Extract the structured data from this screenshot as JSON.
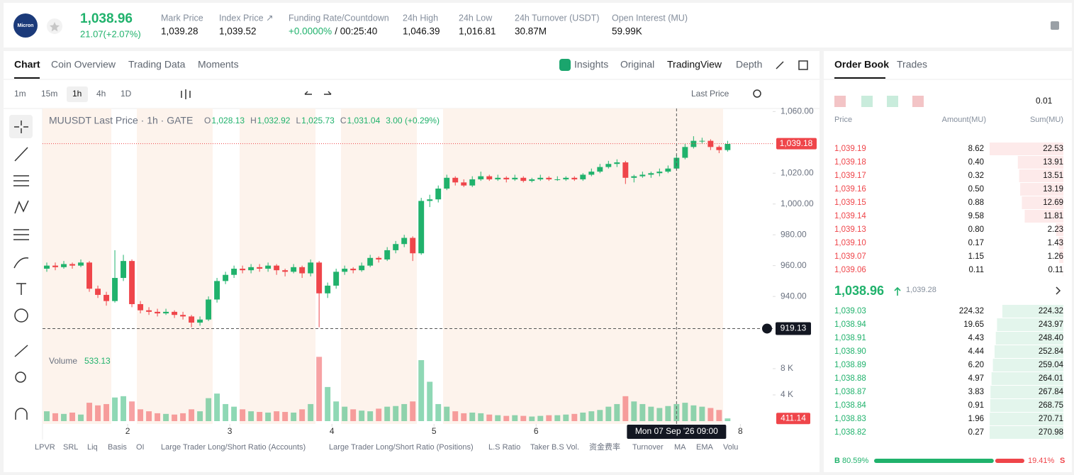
{
  "header": {
    "logo": "Micron",
    "price": "1,038.96",
    "change": "21.07(+2.07%)",
    "stats": [
      {
        "label": "Mark Price",
        "value": "1,039.28"
      },
      {
        "label": "Index Price ↗",
        "value": "1,039.52"
      },
      {
        "label": "Funding Rate/Countdown",
        "value": "+0.0000%",
        "extra": "/ 00:25:40"
      },
      {
        "label": "24h High",
        "value": "1,046.39"
      },
      {
        "label": "24h Low",
        "value": "1,016.81"
      },
      {
        "label": "24h Turnover (USDT)",
        "value": "30.87M"
      },
      {
        "label": "Open Interest (MU)",
        "value": "59.99K"
      }
    ]
  },
  "tabs": [
    "Chart",
    "Coin Overview",
    "Trading Data",
    "Moments"
  ],
  "views": [
    "Insights",
    "Original",
    "TradingView",
    "Depth"
  ],
  "intervals": [
    "1m",
    "15m",
    "1h",
    "4h",
    "1D"
  ],
  "price_source": "Last Price",
  "indicators": [
    "LPVR",
    "SRL",
    "Liq",
    "Basis",
    "OI",
    "Large Trader Long/Short Ratio (Accounts)",
    "Large Trader Long/Short Ratio (Positions)",
    "L.S Ratio",
    "Taker B.S Vol.",
    "资金费率",
    "Turnover",
    "MA",
    "EMA",
    "Volu"
  ],
  "chart_data": {
    "type": "candlestick",
    "legend": {
      "name": "MUUSDT Last Price · 1h · GATE",
      "fields": [
        {
          "key": "O",
          "value": "1,028.13"
        },
        {
          "key": "H",
          "value": "1,032.92"
        },
        {
          "key": "L",
          "value": "1,025.73"
        },
        {
          "key": "C",
          "value": "1,031.04"
        }
      ],
      "change": "3.00 (+0.29%)"
    },
    "up_color": "#20b26c",
    "down_color": "#ef454a",
    "ohlc": [
      [
        958,
        962,
        956,
        960
      ],
      [
        960,
        962,
        957,
        959
      ],
      [
        959,
        963,
        958,
        961
      ],
      [
        961,
        962,
        958,
        960
      ],
      [
        960,
        964,
        959,
        962
      ],
      [
        962,
        963,
        943,
        945
      ],
      [
        945,
        947,
        939,
        941
      ],
      [
        941,
        943,
        934,
        937
      ],
      [
        937,
        970,
        936,
        952
      ],
      [
        952,
        967,
        950,
        963
      ],
      [
        963,
        964,
        933,
        935
      ],
      [
        935,
        937,
        929,
        931
      ],
      [
        931,
        933,
        928,
        930
      ],
      [
        930,
        932,
        927,
        929
      ],
      [
        929,
        932,
        928,
        930
      ],
      [
        930,
        931,
        926,
        928
      ],
      [
        928,
        930,
        925,
        927
      ],
      [
        927,
        928,
        920,
        923
      ],
      [
        923,
        927,
        921,
        925
      ],
      [
        925,
        940,
        924,
        938
      ],
      [
        938,
        952,
        936,
        950
      ],
      [
        950,
        956,
        948,
        954
      ],
      [
        954,
        960,
        952,
        958
      ],
      [
        958,
        960,
        955,
        957
      ],
      [
        957,
        961,
        955,
        959
      ],
      [
        959,
        961,
        956,
        958
      ],
      [
        958,
        962,
        956,
        960
      ],
      [
        960,
        961,
        954,
        957
      ],
      [
        957,
        958,
        953,
        956
      ],
      [
        956,
        961,
        955,
        959
      ],
      [
        959,
        960,
        952,
        955
      ],
      [
        955,
        964,
        953,
        962
      ],
      [
        962,
        963,
        920,
        942
      ],
      [
        942,
        949,
        939,
        947
      ],
      [
        947,
        958,
        945,
        956
      ],
      [
        956,
        960,
        954,
        958
      ],
      [
        958,
        959,
        955,
        957
      ],
      [
        957,
        962,
        956,
        960
      ],
      [
        960,
        967,
        959,
        965
      ],
      [
        965,
        966,
        962,
        964
      ],
      [
        964,
        972,
        963,
        970
      ],
      [
        970,
        976,
        968,
        974
      ],
      [
        974,
        980,
        972,
        978
      ],
      [
        978,
        979,
        963,
        968
      ],
      [
        968,
        1004,
        967,
        1002
      ],
      [
        1002,
        1006,
        998,
        1003
      ],
      [
        1003,
        1012,
        1001,
        1010
      ],
      [
        1010,
        1019,
        1009,
        1017
      ],
      [
        1017,
        1018,
        1012,
        1014
      ],
      [
        1014,
        1016,
        1011,
        1012
      ],
      [
        1012,
        1018,
        1011,
        1016
      ],
      [
        1016,
        1021,
        1015,
        1018
      ],
      [
        1018,
        1019,
        1015,
        1016
      ],
      [
        1016,
        1019,
        1015,
        1017
      ],
      [
        1017,
        1018,
        1014,
        1016
      ],
      [
        1016,
        1019,
        1015,
        1017
      ],
      [
        1017,
        1018,
        1014,
        1015
      ],
      [
        1015,
        1017,
        1014,
        1016
      ],
      [
        1016,
        1019,
        1015,
        1017
      ],
      [
        1017,
        1018,
        1015,
        1016
      ],
      [
        1016,
        1018,
        1015,
        1016
      ],
      [
        1016,
        1018,
        1015,
        1017
      ],
      [
        1017,
        1018,
        1015,
        1016
      ],
      [
        1016,
        1020,
        1015,
        1019
      ],
      [
        1019,
        1023,
        1018,
        1021
      ],
      [
        1021,
        1026,
        1020,
        1024
      ],
      [
        1024,
        1028,
        1023,
        1026
      ],
      [
        1026,
        1029,
        1024,
        1027
      ],
      [
        1027,
        1028,
        1013,
        1017
      ],
      [
        1017,
        1019,
        1014,
        1018
      ],
      [
        1018,
        1021,
        1017,
        1019
      ],
      [
        1019,
        1021,
        1017,
        1020
      ],
      [
        1020,
        1023,
        1018,
        1021
      ],
      [
        1021,
        1025,
        1020,
        1023
      ],
      [
        1023,
        1032,
        1022,
        1030
      ],
      [
        1030,
        1039,
        1029,
        1037
      ],
      [
        1037,
        1044,
        1036,
        1041
      ],
      [
        1041,
        1043,
        1039,
        1041
      ],
      [
        1041,
        1042,
        1035,
        1037
      ],
      [
        1037,
        1038,
        1033,
        1035
      ],
      [
        1035,
        1041,
        1034,
        1039
      ]
    ],
    "volume_name": "Volume",
    "volume_value": "533.13",
    "volumes": [
      1500,
      1200,
      1100,
      1300,
      1000,
      2800,
      2400,
      2600,
      3600,
      3800,
      3000,
      1800,
      1500,
      1200,
      1100,
      1000,
      1200,
      1800,
      1500,
      3500,
      4200,
      2600,
      2200,
      1800,
      1500,
      1400,
      1300,
      1500,
      1400,
      1300,
      1800,
      2600,
      9800,
      5200,
      3000,
      2200,
      1800,
      1600,
      1500,
      1900,
      2200,
      2300,
      2600,
      3000,
      9300,
      6000,
      2600,
      2200,
      1500,
      1200,
      1300,
      1200,
      1000,
      900,
      800,
      900,
      800,
      700,
      800,
      900,
      900,
      1000,
      1100,
      1300,
      1500,
      1700,
      2200,
      2600,
      3800,
      3000,
      2600,
      2200,
      2000,
      2300,
      2600,
      2800,
      2400,
      2200,
      2000,
      1700,
      411.14
    ],
    "xlim": [
      -0.5,
      85.3
    ],
    "xticks": [
      {
        "value": 9.5,
        "label": "2"
      },
      {
        "value": 21.5,
        "label": "3"
      },
      {
        "value": 33.5,
        "label": "4"
      },
      {
        "value": 45.5,
        "label": "5"
      },
      {
        "value": 57.5,
        "label": "6"
      },
      {
        "value": 81.5,
        "label": "8"
      }
    ],
    "ylim": [
      906,
      1062
    ],
    "yticks": [
      {
        "value": 940,
        "label": "940.00"
      },
      {
        "value": 960,
        "label": "960.00"
      },
      {
        "value": 980,
        "label": "980.00"
      },
      {
        "value": 1000,
        "label": "1,000.00"
      },
      {
        "value": 1020,
        "label": "1,020.00"
      },
      {
        "value": 1060,
        "label": "1,060.00"
      }
    ],
    "vlim": [
      0,
      10700
    ],
    "vticks": [
      {
        "value": 4000,
        "label": "4 K"
      },
      {
        "value": 8000,
        "label": "8 K"
      }
    ],
    "last_price": {
      "value": 1039.18,
      "label": "1,039.18"
    },
    "crosshair": {
      "x": {
        "value": 74,
        "label": "Mon 07 Sep '26  09:00"
      },
      "y": 919.13
    }
  },
  "order_book": {
    "tabs": [
      "Order Book",
      "Trades"
    ],
    "precision": "0.01",
    "columns": [
      "Price",
      "Amount(MU)",
      "Sum(MU)"
    ],
    "asks": [
      {
        "price": "1,039.19",
        "amount": "8.62",
        "sum": 22.53
      },
      {
        "price": "1,039.18",
        "amount": "0.40",
        "sum": 13.91
      },
      {
        "price": "1,039.17",
        "amount": "0.32",
        "sum": 13.51
      },
      {
        "price": "1,039.16",
        "amount": "0.50",
        "sum": 13.19
      },
      {
        "price": "1,039.15",
        "amount": "0.88",
        "sum": 12.69
      },
      {
        "price": "1,039.14",
        "amount": "9.58",
        "sum": 11.81
      },
      {
        "price": "1,039.13",
        "amount": "0.80",
        "sum": 2.23
      },
      {
        "price": "1,039.10",
        "amount": "0.17",
        "sum": 1.43
      },
      {
        "price": "1,039.07",
        "amount": "1.15",
        "sum": 1.26
      },
      {
        "price": "1,039.06",
        "amount": "0.11",
        "sum": 0.11
      }
    ],
    "mid_price": "1,038.96",
    "mark_price": "1,039.28",
    "bids": [
      {
        "price": "1,039.03",
        "amount": "224.32",
        "sum": 224.32
      },
      {
        "price": "1,038.94",
        "amount": "19.65",
        "sum": 243.97
      },
      {
        "price": "1,038.91",
        "amount": "4.43",
        "sum": {
          "value": 248.4,
          "label": "248.40"
        }
      },
      {
        "price": "1,038.90",
        "amount": "4.44",
        "sum": 252.84
      },
      {
        "price": "1,038.89",
        "amount": "6.20",
        "sum": 259.04
      },
      {
        "price": "1,038.88",
        "amount": "4.97",
        "sum": 264.01
      },
      {
        "price": "1,038.87",
        "amount": "3.83",
        "sum": 267.84
      },
      {
        "price": "1,038.84",
        "amount": "0.91",
        "sum": 268.75
      },
      {
        "price": "1,038.83",
        "amount": "1.96",
        "sum": 270.71
      },
      {
        "price": "1,038.82",
        "amount": "0.27",
        "sum": 270.98
      }
    ],
    "buy_letter": "B",
    "buy": {
      "value": 80.59,
      "label": "80.59%"
    },
    "sell": {
      "value": 19.41,
      "label": "19.41%"
    },
    "sell_letter": "S"
  }
}
